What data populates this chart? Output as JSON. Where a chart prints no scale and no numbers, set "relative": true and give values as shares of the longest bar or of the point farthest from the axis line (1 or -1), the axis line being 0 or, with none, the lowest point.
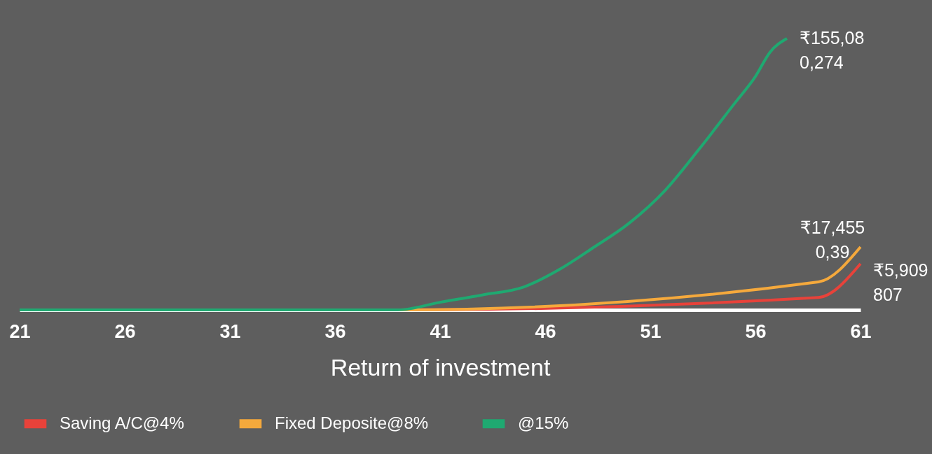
{
  "chart_data": {
    "type": "line",
    "relative": true,
    "xlabel": "Return of investment",
    "xlim": [
      21,
      61
    ],
    "xticks": [
      21,
      26,
      31,
      36,
      41,
      46,
      51,
      56,
      61
    ],
    "series": [
      {
        "name": "Saving A/C@4%",
        "color": "#e8423a",
        "x": [
          21,
          39,
          59,
          61
        ],
        "values": [
          0,
          0,
          0.046,
          0.17
        ]
      },
      {
        "name": "Fixed Deposite@8%",
        "color": "#f5a93c",
        "x": [
          21,
          39,
          59,
          61
        ],
        "values": [
          0,
          0,
          0.103,
          0.232
        ]
      },
      {
        "name": "@15%",
        "color": "#1fa971",
        "x": [
          21,
          39,
          41,
          43,
          45,
          46.7,
          48.3,
          50,
          51.7,
          53.3,
          55,
          56,
          56.7,
          57.5
        ],
        "values": [
          0,
          0,
          0.028,
          0.055,
          0.085,
          0.15,
          0.23,
          0.32,
          0.44,
          0.59,
          0.76,
          0.86,
          0.95,
          1
        ]
      }
    ],
    "annotations": [
      "₹5,909\n807",
      "₹17,455\n0,39",
      "₹155,08\n0,274"
    ],
    "grid": false,
    "legend": "bottom",
    "marker": "none",
    "line_style": "solid"
  }
}
